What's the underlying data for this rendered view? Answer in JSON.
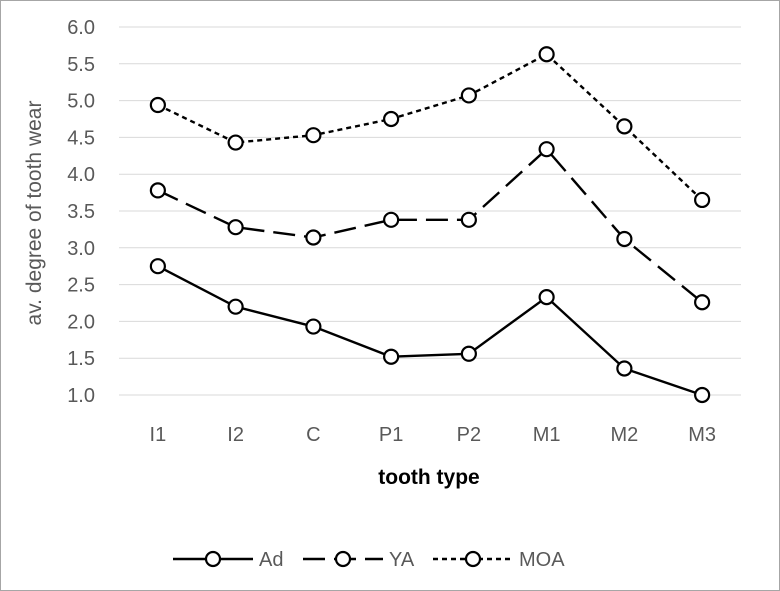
{
  "chart_data": {
    "type": "line",
    "title": "",
    "xlabel": "tooth type",
    "ylabel": "av. degree of tooth wear",
    "categories": [
      "I1",
      "I2",
      "C",
      "P1",
      "P2",
      "M1",
      "M2",
      "M3"
    ],
    "ylim": [
      1.0,
      6.0
    ],
    "yticks": [
      "1.0",
      "1.5",
      "2.0",
      "2.5",
      "3.0",
      "3.5",
      "4.0",
      "4.5",
      "5.0",
      "5.5",
      "6.0"
    ],
    "grid": true,
    "legend_position": "bottom",
    "series": [
      {
        "name": "Ad",
        "dash": "solid",
        "values": [
          2.75,
          2.2,
          1.93,
          1.52,
          1.56,
          2.33,
          1.36,
          1.0
        ]
      },
      {
        "name": "YA",
        "dash": "long-dash",
        "values": [
          3.78,
          3.28,
          3.14,
          3.38,
          3.38,
          4.34,
          3.12,
          2.26
        ]
      },
      {
        "name": "MOA",
        "dash": "short-dash",
        "values": [
          4.94,
          4.43,
          4.53,
          4.75,
          5.07,
          5.63,
          4.65,
          3.65
        ]
      }
    ]
  }
}
